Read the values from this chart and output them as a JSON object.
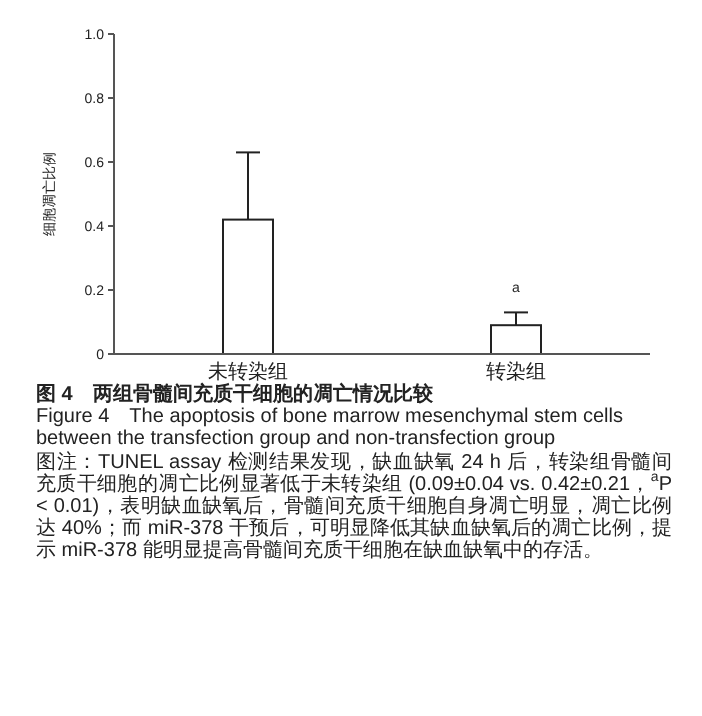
{
  "chart_data": {
    "type": "bar",
    "title": "图 4　两组骨髓间充质干细胞的凋亡情况比较",
    "subtitle": "Figure 4　The apoptosis of bone marrow mesenchymal stem cells between the transfection group and non-transfection group",
    "ylabel": "细胞凋亡比例",
    "categories": [
      "未转染组",
      "转染组"
    ],
    "series": [
      {
        "color": "#ffffff",
        "values": [
          0.42,
          0.09
        ],
        "errors": [
          [
            0.42,
            0.63
          ],
          [
            0.09,
            0.13
          ]
        ]
      }
    ],
    "ylim": [
      0,
      1
    ],
    "yticks": [
      0,
      0.2,
      0.4,
      0.6,
      0.8,
      {
        "value": 1,
        "label": "1.0"
      }
    ],
    "grid": false,
    "annotations": [
      "a",
      "图注：TUNEL assay 检测结果发现，缺血缺氧 24 h 后，转染组骨髓间充质干细胞的凋亡比例显著低于未转染组 (0.09±0.04 vs. 0.42±0.21，$^{a}$P < 0.01)，表明缺血缺氧后，骨髓间充质干细胞自身凋亡明显，凋亡比例达 40%；而 miR-378 干预后，可明显降低其缺血缺氧后的凋亡比例，提示 miR-378 能明显提高骨髓间充质干细胞在缺血缺氧中的存活。"
    ]
  }
}
